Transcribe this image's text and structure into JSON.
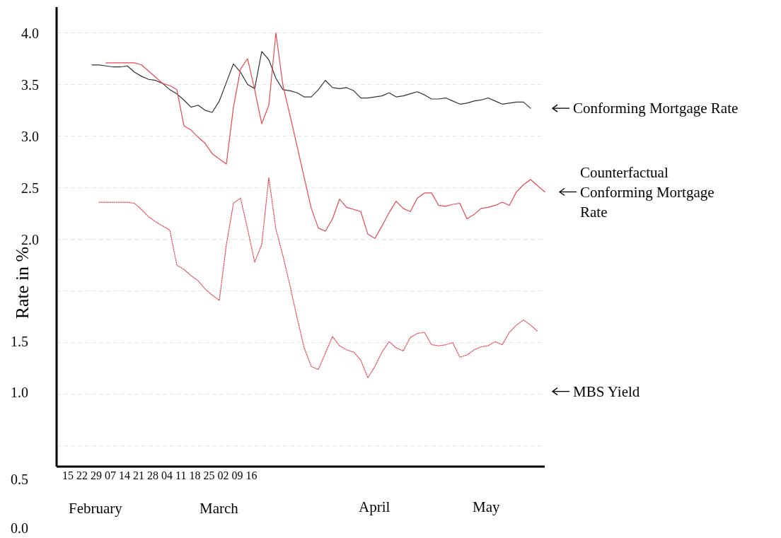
{
  "chart_data": {
    "type": "line",
    "ylabel": "Rate in %",
    "categories": [
      null,
      null,
      null,
      null,
      null,
      null,
      null,
      null,
      null,
      null,
      null,
      null,
      null,
      null,
      null,
      null,
      null,
      null,
      null,
      null,
      null,
      null,
      null,
      null,
      null,
      null,
      null,
      null,
      null,
      null,
      null,
      null,
      null,
      null,
      null,
      null,
      null,
      null,
      null,
      null,
      null,
      null,
      null,
      null,
      null,
      null,
      null,
      null,
      null,
      null,
      null,
      null,
      null,
      null,
      null,
      null,
      null,
      null,
      null,
      null,
      null,
      null,
      null,
      null,
      null,
      null,
      null,
      null,
      null,
      null
    ],
    "ylim": [
      -0.2,
      4.25
    ],
    "yticks": [
      {
        "value": 0,
        "label": null
      },
      {
        "value": 0.5,
        "label": null
      },
      {
        "value": 1,
        "label": null
      },
      {
        "value": 1.5,
        "label": null
      },
      {
        "value": 2,
        "label": "2.0"
      },
      2.5,
      {
        "value": 3,
        "label": "3.0"
      },
      3.5,
      {
        "value": 4,
        "label": "4.0"
      }
    ],
    "tick_labels": "y",
    "grid": "y",
    "legend": false,
    "marker": "none",
    "series": [
      {
        "name": "Conforming Mortgage Rate",
        "color": "#333333",
        "line_style": "solid",
        "values": [
          null,
          null,
          null,
          null,
          null,
          3.69,
          3.69,
          3.68,
          3.67,
          3.67,
          3.68,
          3.62,
          3.58,
          3.55,
          3.54,
          3.51,
          3.45,
          3.41,
          3.35,
          3.28,
          3.3,
          3.25,
          3.23,
          3.34,
          3.52,
          3.7,
          3.62,
          3.5,
          3.46,
          3.82,
          3.74,
          3.56,
          3.45,
          3.44,
          3.42,
          3.38,
          3.38,
          3.45,
          3.54,
          3.47,
          3.46,
          3.47,
          3.44,
          3.37,
          3.37,
          3.38,
          3.39,
          3.42,
          3.38,
          3.39,
          3.41,
          3.43,
          3.4,
          3.36,
          3.36,
          3.37,
          3.34,
          3.31,
          3.32,
          3.34,
          3.35,
          3.37,
          3.34,
          3.31,
          3.32,
          3.33,
          3.33,
          3.27,
          null,
          null
        ]
      },
      {
        "name": "Counterfactual Conforming Mortgage Rate",
        "color": "#e8474f",
        "line_style": "solid",
        "values": [
          null,
          null,
          null,
          null,
          null,
          null,
          null,
          3.71,
          3.71,
          3.71,
          3.71,
          3.71,
          3.69,
          3.63,
          3.57,
          3.51,
          3.49,
          3.45,
          3.1,
          3.06,
          2.99,
          2.93,
          2.83,
          2.78,
          2.73,
          3.28,
          3.65,
          3.75,
          3.45,
          3.12,
          3.3,
          4.0,
          3.49,
          3.2,
          2.9,
          2.6,
          2.3,
          2.11,
          2.08,
          2.2,
          2.39,
          2.31,
          2.29,
          2.27,
          2.05,
          2.01,
          2.13,
          2.26,
          2.37,
          2.3,
          2.27,
          2.4,
          2.45,
          2.45,
          2.33,
          2.32,
          2.34,
          2.35,
          2.2,
          2.24,
          2.3,
          2.31,
          2.33,
          2.36,
          2.33,
          2.46,
          2.53,
          2.58,
          2.52,
          2.46
        ]
      },
      {
        "name": "MBS Yield",
        "color": "#e8474f",
        "line_style": "dotted",
        "values": [
          null,
          null,
          null,
          null,
          null,
          null,
          2.36,
          2.36,
          2.36,
          2.36,
          2.36,
          2.35,
          2.29,
          2.22,
          2.17,
          2.13,
          2.09,
          1.75,
          1.71,
          1.65,
          1.6,
          1.52,
          1.46,
          1.41,
          1.95,
          2.35,
          2.4,
          2.1,
          1.78,
          1.95,
          2.6,
          2.1,
          1.84,
          1.55,
          1.24,
          0.95,
          0.77,
          0.74,
          0.9,
          1.06,
          0.97,
          0.93,
          0.91,
          0.83,
          0.66,
          0.77,
          0.91,
          1.01,
          0.95,
          0.92,
          1.05,
          1.09,
          1.1,
          0.98,
          0.97,
          0.98,
          1.0,
          0.86,
          0.88,
          0.93,
          0.96,
          0.97,
          1.01,
          0.98,
          1.1,
          1.17,
          1.22,
          1.17,
          1.11,
          null
        ]
      }
    ],
    "annotations": [
      "1.5",
      "1.0",
      "0.5",
      "0.0",
      "15 22 29 07 14 21 28 04 11 18 25 02 09 16",
      "February",
      "March",
      "April",
      "May"
    ]
  }
}
